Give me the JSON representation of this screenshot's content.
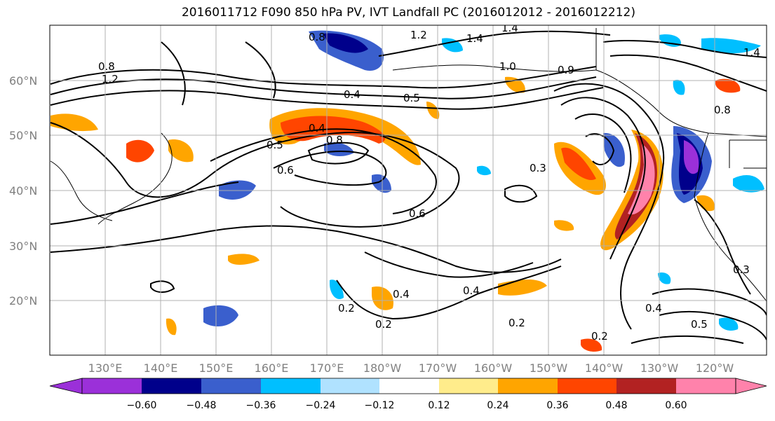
{
  "title": "2016011712 F090 850 hPa PV, IVT Landfall PC (2016012012 - 2016012212)",
  "map": {
    "lat_labels": [
      "60°N",
      "50°N",
      "40°N",
      "30°N",
      "20°N"
    ],
    "lon_labels": [
      "130°E",
      "140°E",
      "150°E",
      "160°E",
      "170°E",
      "180°W",
      "170°W",
      "160°W",
      "150°W",
      "140°W",
      "130°W",
      "120°W"
    ],
    "contour_labels": [
      "0.8",
      "1.2",
      "1.4",
      "1.4",
      "1.0",
      "0.9",
      "0.4",
      "0.5",
      "0.8",
      "0.4",
      "0.5",
      "0.8",
      "0.6",
      "0.3",
      "0.6",
      "0.4",
      "0.4",
      "0.2",
      "0.2",
      "0.2",
      "0.4",
      "0.5",
      "0.2",
      "0.3",
      "0.8",
      "1.4",
      "1.2"
    ]
  },
  "colorbar": {
    "ticks": [
      "−0.60",
      "−0.48",
      "−0.36",
      "−0.24",
      "−0.12",
      "0.12",
      "0.24",
      "0.36",
      "0.48",
      "0.60"
    ],
    "colors": [
      "#9b30d9",
      "#00008b",
      "#3a5fcd",
      "#00bfff",
      "#b0e2ff",
      "#ffffff",
      "#ffec8b",
      "#ffa500",
      "#ff4500",
      "#b22222",
      "#ff82ab"
    ]
  }
}
